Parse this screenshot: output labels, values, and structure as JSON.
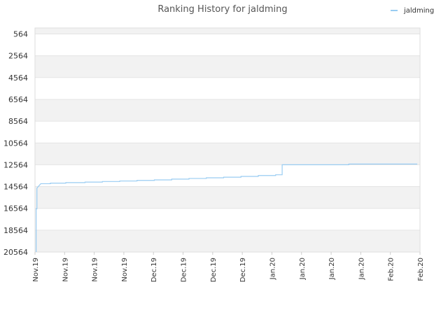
{
  "chart_data": {
    "type": "line",
    "title": "Ranking History for jaldming",
    "xlabel": "",
    "ylabel": "",
    "y_reversed": true,
    "ylim": [
      20564,
      564
    ],
    "y_ticks": [
      564,
      2564,
      4564,
      6564,
      8564,
      10564,
      12564,
      14564,
      16564,
      18564,
      20564
    ],
    "y_tick_labels": [
      "564",
      "2564",
      "4564",
      "6564",
      "8564",
      "10564",
      "12564",
      "14564",
      "16564",
      "18564",
      "20564"
    ],
    "x_tick_labels": [
      "Nov.19",
      "Nov.19",
      "Nov.19",
      "Nov.19",
      "Dec.19",
      "Dec.19",
      "Dec.19",
      "Dec.19",
      "Jan.20",
      "Jan.20",
      "Jan.20",
      "Jan.20",
      "Feb.20",
      "Feb.20"
    ],
    "x_range": [
      0,
      100
    ],
    "grid": "horizontal alternating bands",
    "legend": "top-right",
    "series": [
      {
        "name": "jaldming",
        "color": "#99ccf2",
        "step": true,
        "points": [
          [
            0.3,
            20564
          ],
          [
            0.3,
            16600
          ],
          [
            0.5,
            16600
          ],
          [
            0.5,
            14700
          ],
          [
            1.0,
            14500
          ],
          [
            1.5,
            14300
          ],
          [
            4,
            14300
          ],
          [
            4,
            14250
          ],
          [
            8,
            14250
          ],
          [
            8,
            14200
          ],
          [
            13,
            14200
          ],
          [
            13,
            14150
          ],
          [
            17.5,
            14150
          ],
          [
            17.5,
            14100
          ],
          [
            22,
            14100
          ],
          [
            22,
            14050
          ],
          [
            26.5,
            14050
          ],
          [
            26.5,
            14000
          ],
          [
            31,
            14000
          ],
          [
            31,
            13950
          ],
          [
            35.5,
            13950
          ],
          [
            35.5,
            13880
          ],
          [
            40,
            13880
          ],
          [
            40,
            13820
          ],
          [
            44.5,
            13820
          ],
          [
            44.5,
            13760
          ],
          [
            49,
            13760
          ],
          [
            49,
            13700
          ],
          [
            53.5,
            13700
          ],
          [
            53.5,
            13630
          ],
          [
            58,
            13630
          ],
          [
            58,
            13550
          ],
          [
            62.5,
            13550
          ],
          [
            62.5,
            13480
          ],
          [
            64.2,
            13480
          ],
          [
            64.2,
            12564
          ],
          [
            81.5,
            12564
          ],
          [
            81.5,
            12500
          ],
          [
            99.3,
            12500
          ]
        ]
      }
    ]
  }
}
